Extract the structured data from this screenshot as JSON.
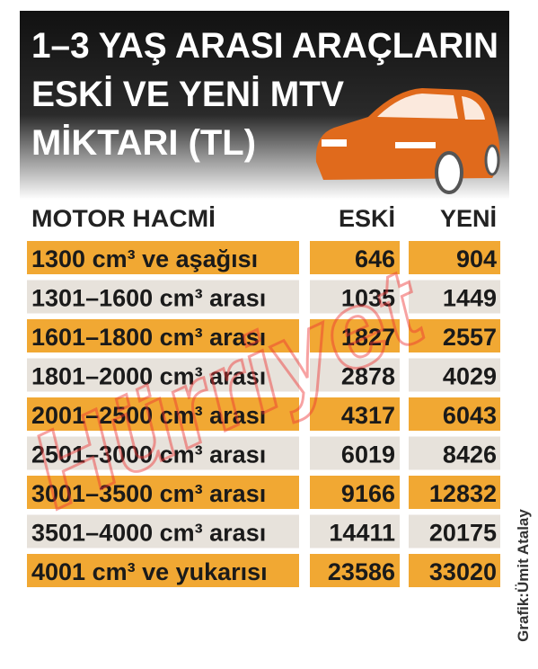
{
  "header": {
    "title_lines": [
      "1–3 YAŞ ARASI ARAÇLARIN",
      "ESKİ VE YENİ MTV",
      "MİKTARI (TL)"
    ]
  },
  "table": {
    "columns": [
      "MOTOR HACMİ",
      "ESKİ",
      "YENİ"
    ],
    "rows": [
      [
        "1300 cm³ ve aşağısı",
        646,
        904
      ],
      [
        "1301–1600 cm³ arası",
        1035,
        1449
      ],
      [
        "1601–1800 cm³ arası",
        1827,
        2557
      ],
      [
        "1801–2000 cm³ arası",
        2878,
        4029
      ],
      [
        "2001–2500 cm³ arası",
        4317,
        6043
      ],
      [
        "2501–3000 cm³ arası",
        6019,
        8426
      ],
      [
        "3001–3500 cm³ arası",
        9166,
        12832
      ],
      [
        "3501–4000 cm³ arası",
        14411,
        20175
      ],
      [
        "4001 cm³ ve yukarısı",
        23586,
        33020
      ]
    ]
  },
  "credit": "Grafik:Ümit Atalay",
  "watermark": "Hürriyet"
}
